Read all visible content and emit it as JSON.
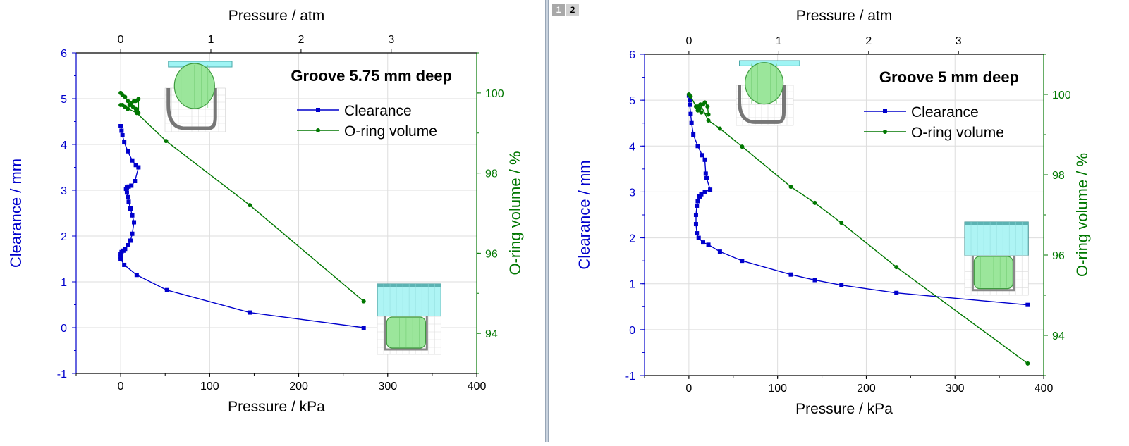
{
  "tabs": [
    {
      "label": "1",
      "active": false
    },
    {
      "label": "2",
      "active": true
    }
  ],
  "colors": {
    "clearance": "#0000cc",
    "volume": "#007700",
    "axis": "#000000",
    "grid": "#dddddd"
  },
  "chart_data": [
    {
      "type": "line",
      "title": "Groove 5.75 mm deep",
      "xlabel": "Pressure / kPa",
      "x2label": "Pressure / atm",
      "ylabel": "Clearance / mm",
      "y2label": "O-ring volume / %",
      "xlim": [
        -50,
        400
      ],
      "ylim": [
        -1,
        6
      ],
      "y2lim": [
        93,
        101
      ],
      "x2lim": [
        -0.4935,
        3.9477
      ],
      "xticks": [
        "0",
        "100",
        "200",
        "300",
        "400"
      ],
      "x2ticks": [
        "0",
        "1",
        "2",
        "3"
      ],
      "yticks": [
        "-1",
        "0",
        "1",
        "2",
        "3",
        "4",
        "5",
        "6"
      ],
      "y2ticks": [
        "94",
        "96",
        "98",
        "100"
      ],
      "legend": [
        "Clearance",
        "O-ring volume"
      ],
      "legend_position": "top-right",
      "grid": true,
      "series": [
        {
          "name": "Clearance",
          "axis": "left",
          "marker": "square",
          "x": [
            0,
            1,
            2,
            4,
            8,
            13,
            17,
            20,
            16,
            12,
            9,
            7,
            6,
            7,
            8,
            9,
            11,
            13,
            15,
            13,
            11,
            8,
            5,
            3,
            1,
            0,
            0,
            0,
            4,
            18,
            52,
            145,
            273
          ],
          "y": [
            4.4,
            4.3,
            4.2,
            4.05,
            3.85,
            3.65,
            3.55,
            3.5,
            3.2,
            3.1,
            3.08,
            3.06,
            3.03,
            2.95,
            2.85,
            2.75,
            2.6,
            2.45,
            2.3,
            2.05,
            1.9,
            1.8,
            1.72,
            1.68,
            1.65,
            1.6,
            1.55,
            1.5,
            1.37,
            1.15,
            0.82,
            0.33,
            0.0
          ]
        },
        {
          "name": "O-ring volume",
          "axis": "right",
          "marker": "circle",
          "x": [
            0,
            2,
            5,
            8,
            10,
            12,
            15,
            17,
            20,
            20,
            17,
            14,
            11,
            8,
            5,
            2,
            0,
            18,
            51,
            145,
            273
          ],
          "y": [
            100,
            99.95,
            99.9,
            99.8,
            99.7,
            99.75,
            99.8,
            99.8,
            99.85,
            99.5,
            99.6,
            99.65,
            99.7,
            99.6,
            99.65,
            99.7,
            99.7,
            99.5,
            98.8,
            97.2,
            94.8
          ]
        }
      ]
    },
    {
      "type": "line",
      "title": "Groove 5 mm deep",
      "xlabel": "Pressure / kPa",
      "x2label": "Pressure / atm",
      "ylabel": "Clearance / mm",
      "y2label": "O-ring volume / %",
      "xlim": [
        -50,
        400
      ],
      "ylim": [
        -1,
        6
      ],
      "y2lim": [
        93,
        101
      ],
      "x2lim": [
        -0.4935,
        3.9477
      ],
      "xticks": [
        "0",
        "100",
        "200",
        "300",
        "400"
      ],
      "x2ticks": [
        "0",
        "1",
        "2",
        "3"
      ],
      "yticks": [
        "-1",
        "0",
        "1",
        "2",
        "3",
        "4",
        "5",
        "6"
      ],
      "y2ticks": [
        "94",
        "96",
        "98",
        "100"
      ],
      "legend": [
        "Clearance",
        "O-ring volume"
      ],
      "legend_position": "top-right",
      "grid": true,
      "series": [
        {
          "name": "Clearance",
          "axis": "left",
          "marker": "square",
          "x": [
            0,
            1,
            1,
            2,
            3,
            5,
            10,
            15,
            18,
            19,
            20,
            24,
            18,
            14,
            12,
            10,
            9,
            8,
            8,
            9,
            11,
            16,
            22,
            35,
            60,
            115,
            142,
            172,
            234,
            382
          ],
          "y": [
            5.1,
            5.0,
            4.9,
            4.7,
            4.5,
            4.25,
            4.0,
            3.8,
            3.7,
            3.4,
            3.3,
            3.05,
            3.0,
            2.95,
            2.9,
            2.8,
            2.7,
            2.5,
            2.3,
            2.1,
            2.0,
            1.9,
            1.85,
            1.7,
            1.5,
            1.2,
            1.08,
            0.97,
            0.8,
            0.54
          ]
        },
        {
          "name": "O-ring volume",
          "axis": "right",
          "marker": "circle",
          "x": [
            0,
            2,
            8,
            10,
            12,
            16,
            18,
            21,
            22,
            14,
            10,
            13,
            22,
            35,
            60,
            115,
            142,
            172,
            234,
            382
          ],
          "y": [
            100,
            99.95,
            99.7,
            99.6,
            99.65,
            99.75,
            99.8,
            99.7,
            99.5,
            99.55,
            99.7,
            99.75,
            99.35,
            99.15,
            98.7,
            97.7,
            97.3,
            96.8,
            95.7,
            93.3
          ]
        }
      ]
    }
  ]
}
